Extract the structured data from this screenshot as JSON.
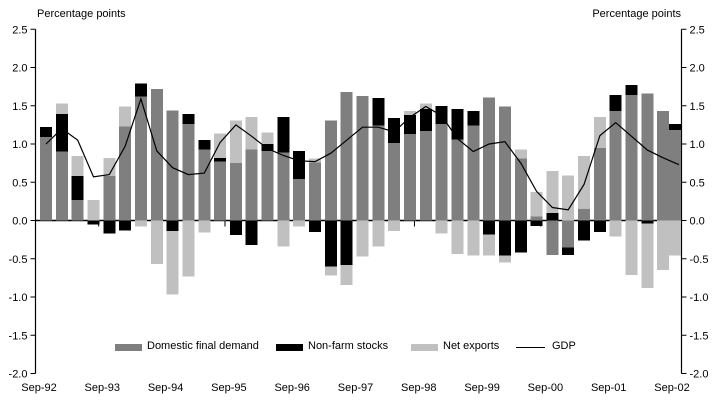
{
  "titles": {
    "left": "Percentage points",
    "right": "Percentage points"
  },
  "legend": [
    {
      "label": "Domestic final demand",
      "swatch": "gray-bar-swatch",
      "color": "#7f7f7f"
    },
    {
      "label": "Non-farm stocks",
      "swatch": "black-bar-swatch",
      "color": "#000000"
    },
    {
      "label": "Net exports",
      "swatch": "light-bar-swatch",
      "color": "#c0c0c0"
    },
    {
      "label": "GDP",
      "swatch": "line-swatch",
      "color": "#000000"
    }
  ],
  "chart_data": {
    "type": "bar",
    "subtype": "stacked-bars-with-line-overlay",
    "title": "",
    "xlabel": "",
    "ylabel_left": "Percentage points",
    "ylabel_right": "Percentage points",
    "ylim": [
      -2.0,
      2.5
    ],
    "ytick_step": 0.5,
    "ytick_labels": [
      "2.5",
      "2.0",
      "1.5",
      "1.0",
      "0.5",
      "0.0",
      "-0.5",
      "-1.0",
      "-1.5",
      "-2.0"
    ],
    "grid": false,
    "legend_position": "bottom-center",
    "x": [
      "Sep-92",
      "Dec-92",
      "Mar-93",
      "Jun-93",
      "Sep-93",
      "Dec-93",
      "Mar-94",
      "Jun-94",
      "Sep-94",
      "Dec-94",
      "Mar-95",
      "Jun-95",
      "Sep-95",
      "Dec-95",
      "Mar-96",
      "Jun-96",
      "Sep-96",
      "Dec-96",
      "Mar-97",
      "Jun-97",
      "Sep-97",
      "Dec-97",
      "Mar-98",
      "Jun-98",
      "Sep-98",
      "Dec-98",
      "Mar-99",
      "Jun-99",
      "Sep-99",
      "Dec-99",
      "Mar-00",
      "Jun-00",
      "Sep-00",
      "Dec-00",
      "Mar-01",
      "Jun-01",
      "Sep-01",
      "Dec-01",
      "Mar-02",
      "Jun-02",
      "Sep-02"
    ],
    "x_tick_labels": [
      "Sep-92",
      "Sep-93",
      "Sep-94",
      "Sep-95",
      "Sep-96",
      "Sep-97",
      "Sep-98",
      "Sep-99",
      "Sep-00",
      "Sep-01",
      "Sep-02"
    ],
    "series": [
      {
        "name": "Domestic final demand",
        "kind": "bar",
        "color": "#7f7f7f",
        "values": [
          1.09,
          0.9,
          0.27,
          0.0,
          0.58,
          1.23,
          1.62,
          1.72,
          1.44,
          1.26,
          0.93,
          0.77,
          0.75,
          0.93,
          0.91,
          0.89,
          0.54,
          0.76,
          1.31,
          1.68,
          1.63,
          1.24,
          1.01,
          1.13,
          1.17,
          1.26,
          1.06,
          1.24,
          1.61,
          1.49,
          0.81,
          0.05,
          -0.45,
          -0.35,
          0.16,
          0.95,
          1.43,
          1.64,
          1.66,
          1.43,
          1.18
        ]
      },
      {
        "name": "Non-farm stocks",
        "kind": "bar",
        "color": "#000000",
        "values": [
          0.13,
          0.49,
          0.31,
          -0.05,
          -0.17,
          -0.13,
          0.17,
          0.0,
          -0.14,
          0.13,
          0.12,
          0.05,
          -0.19,
          -0.32,
          0.09,
          0.46,
          0.37,
          -0.15,
          -0.6,
          -0.58,
          0.0,
          0.36,
          0.33,
          0.25,
          0.29,
          0.24,
          0.4,
          0.19,
          -0.18,
          -0.46,
          -0.42,
          -0.07,
          0.1,
          -0.1,
          -0.26,
          -0.15,
          0.21,
          0.13,
          -0.04,
          0.0,
          0.08
        ]
      },
      {
        "name": "Net exports",
        "kind": "bar",
        "color": "#c0c0c0",
        "values": [
          0.0,
          0.14,
          0.26,
          0.27,
          0.24,
          0.26,
          -0.08,
          -0.57,
          -0.83,
          -0.73,
          -0.16,
          0.32,
          0.56,
          0.42,
          0.15,
          -0.34,
          -0.08,
          0.05,
          -0.12,
          -0.26,
          -0.47,
          -0.34,
          -0.14,
          0.05,
          0.07,
          -0.17,
          -0.44,
          -0.46,
          -0.28,
          -0.09,
          0.12,
          0.32,
          0.55,
          0.59,
          0.68,
          0.4,
          -0.21,
          -0.71,
          -0.84,
          -0.65,
          -0.46
        ]
      },
      {
        "name": "GDP",
        "kind": "line",
        "color": "#000000",
        "values": [
          1.0,
          1.2,
          1.05,
          0.57,
          0.6,
          0.97,
          1.59,
          0.91,
          0.69,
          0.6,
          0.62,
          1.02,
          1.25,
          1.1,
          0.94,
          0.85,
          0.78,
          0.77,
          0.88,
          1.05,
          1.22,
          1.22,
          1.16,
          1.35,
          1.49,
          1.37,
          1.07,
          0.9,
          1.0,
          1.03,
          0.75,
          0.38,
          0.17,
          0.14,
          0.47,
          1.11,
          1.28,
          1.1,
          0.92,
          0.82,
          0.73
        ]
      }
    ]
  }
}
